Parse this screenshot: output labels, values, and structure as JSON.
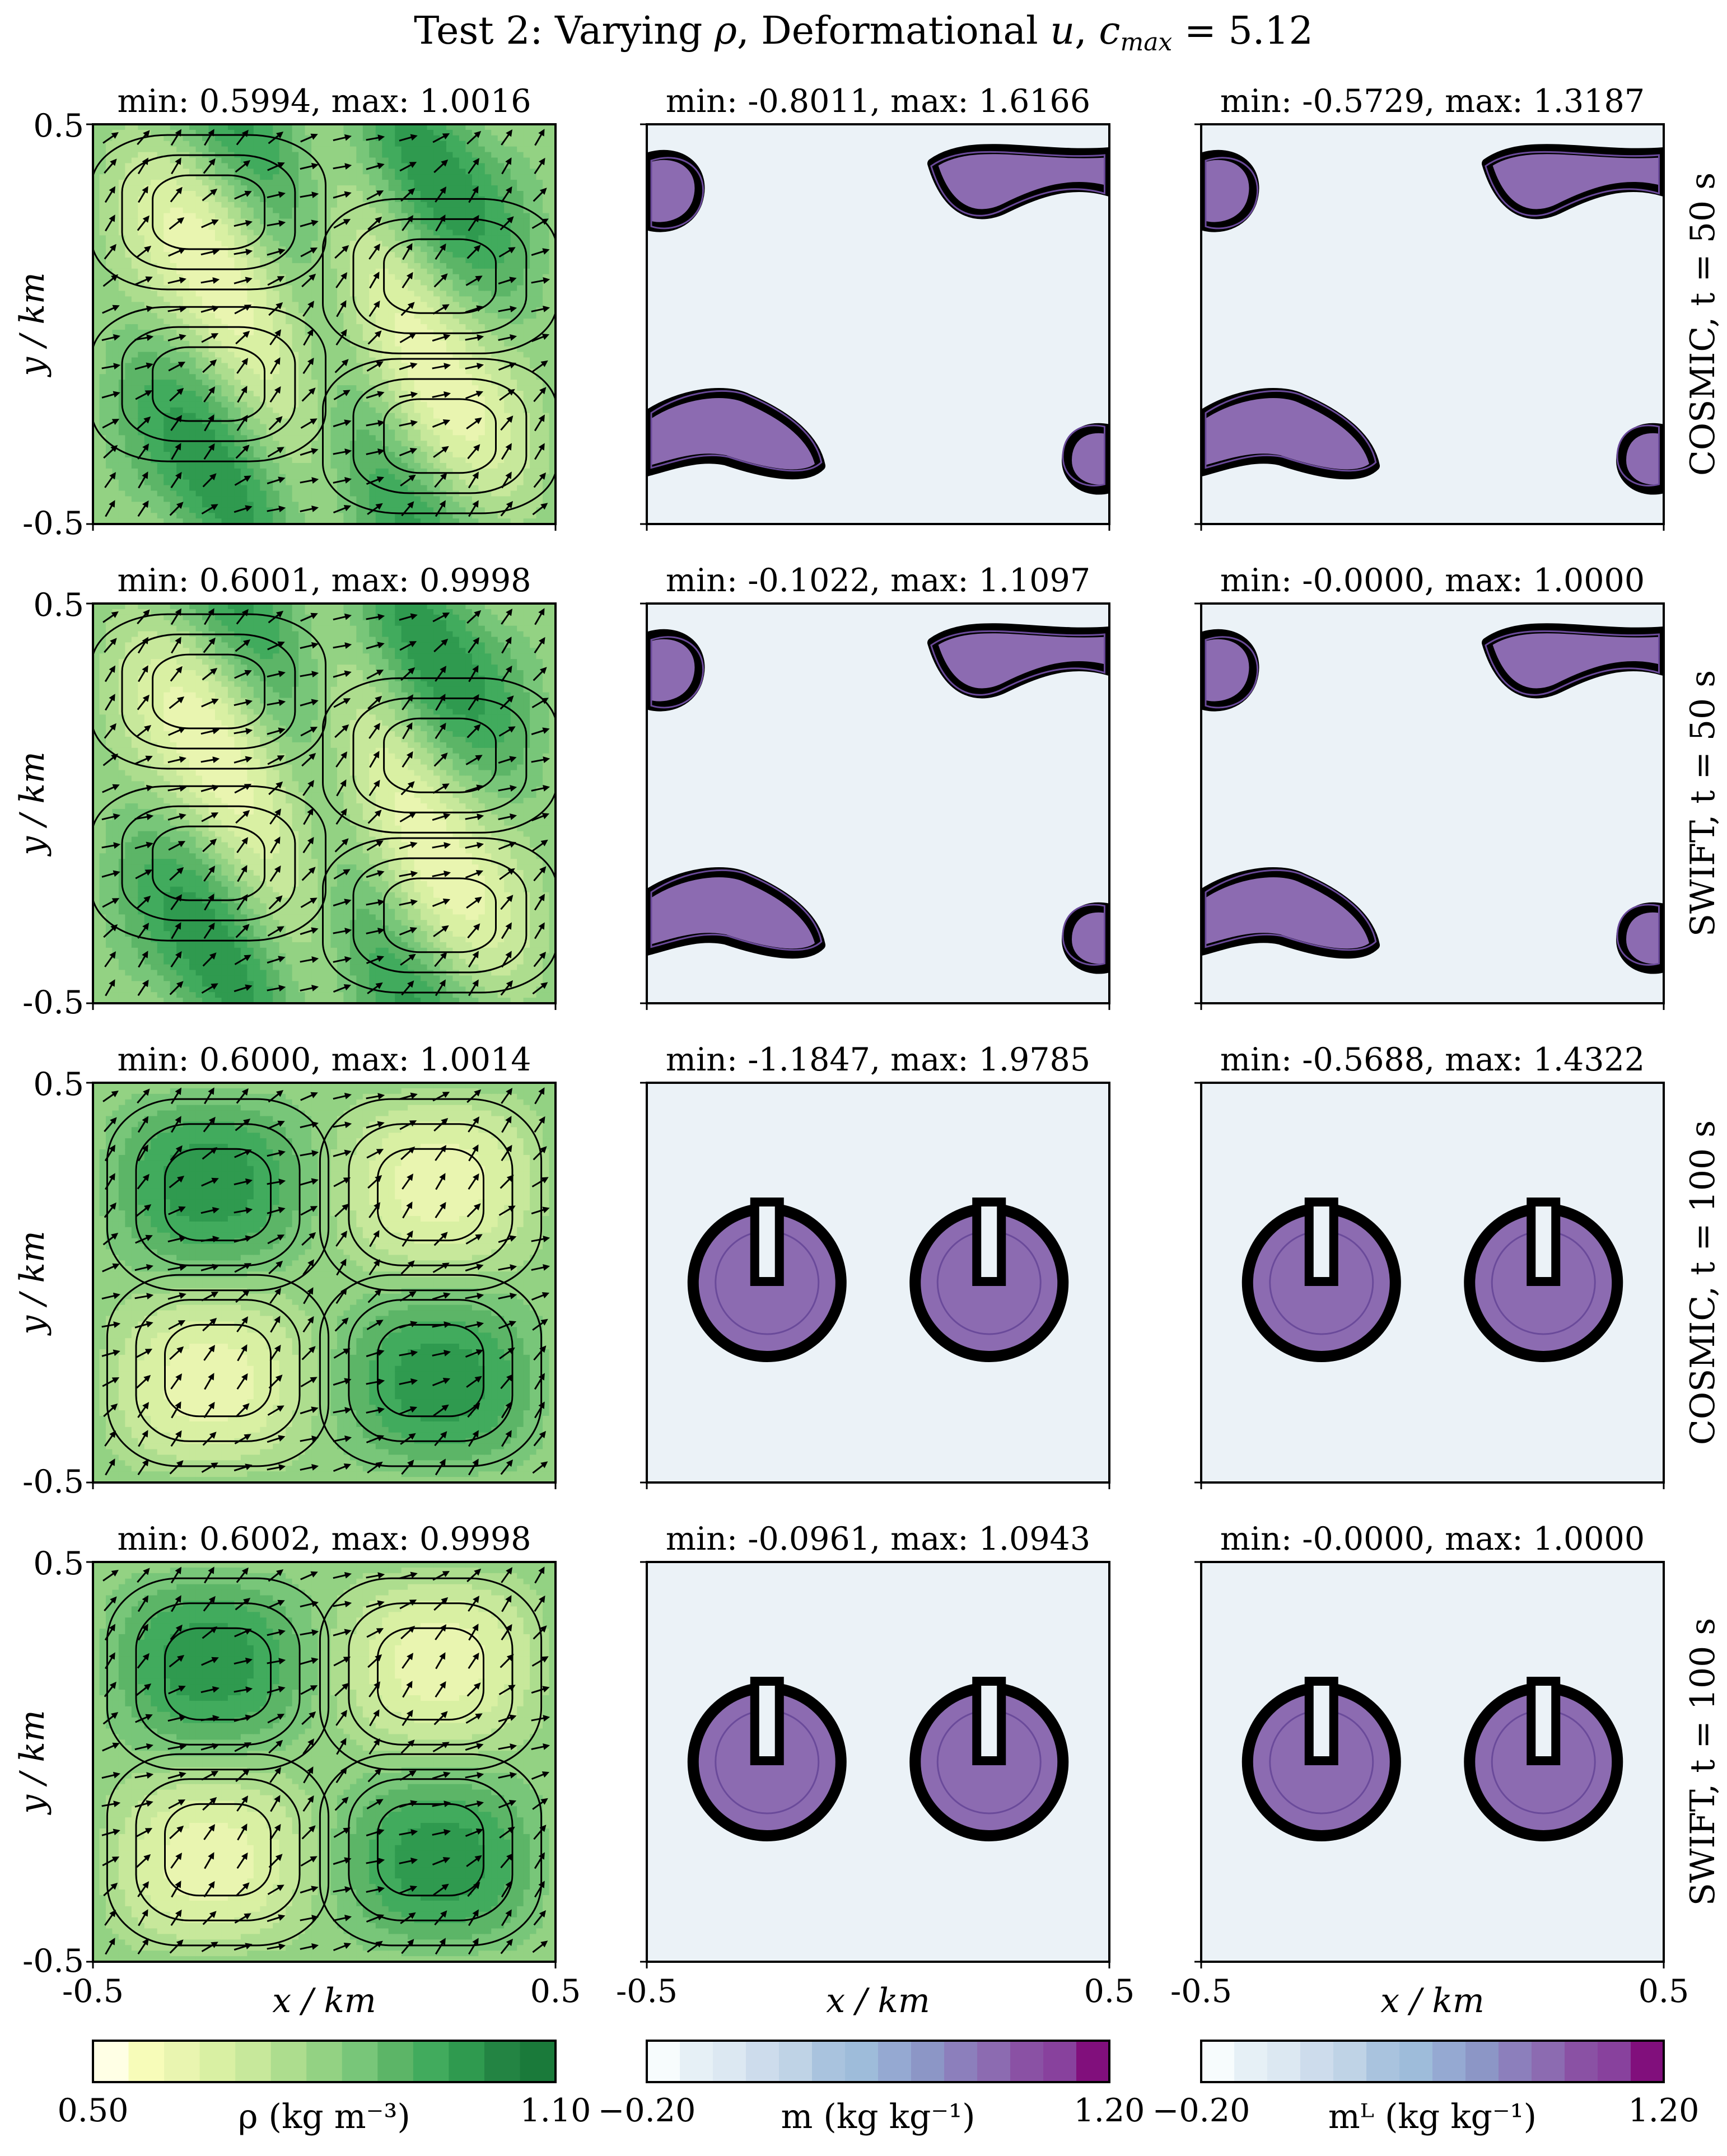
{
  "figure": {
    "title": "Test 2: Varying ρ, Deformational u, c_max = 5.12"
  },
  "chart_data": {
    "type": "heatmap",
    "title": "Test 2: Varying ρ, Deformational u, c_max = 5.12",
    "xlabel": "x / km",
    "ylabel": "y / km",
    "xlim": [
      -0.5,
      0.5
    ],
    "ylim": [
      -0.5,
      0.5
    ],
    "x_ticks": [
      "-0.5",
      "0.5"
    ],
    "y_ticks": [
      "0.5",
      "-0.5"
    ],
    "row_labels": [
      "COSMIC, t = 50 s",
      "SWIFT, t = 50 s",
      "COSMIC, t = 100 s",
      "SWIFT, t = 100 s"
    ],
    "panels": [
      [
        {
          "variable": "rho",
          "scheme": "COSMIC",
          "t": 50,
          "min": "0.5994",
          "max": "1.0016",
          "title": "min: 0.5994, max: 1.0016"
        },
        {
          "variable": "m",
          "scheme": "COSMIC",
          "t": 50,
          "min": "-0.8011",
          "max": "1.6166",
          "title": "min: -0.8011, max: 1.6166"
        },
        {
          "variable": "mL",
          "scheme": "COSMIC",
          "t": 50,
          "min": "-0.5729",
          "max": "1.3187",
          "title": "min: -0.5729, max: 1.3187"
        }
      ],
      [
        {
          "variable": "rho",
          "scheme": "SWIFT",
          "t": 50,
          "min": "0.6001",
          "max": "0.9998",
          "title": "min: 0.6001, max: 0.9998"
        },
        {
          "variable": "m",
          "scheme": "SWIFT",
          "t": 50,
          "min": "-0.1022",
          "max": "1.1097",
          "title": "min: -0.1022, max: 1.1097"
        },
        {
          "variable": "mL",
          "scheme": "SWIFT",
          "t": 50,
          "min": "-0.0000",
          "max": "1.0000",
          "title": "min: -0.0000, max: 1.0000"
        }
      ],
      [
        {
          "variable": "rho",
          "scheme": "COSMIC",
          "t": 100,
          "min": "0.6000",
          "max": "1.0014",
          "title": "min: 0.6000, max: 1.0014"
        },
        {
          "variable": "m",
          "scheme": "COSMIC",
          "t": 100,
          "min": "-1.1847",
          "max": "1.9785",
          "title": "min: -1.1847, max: 1.9785"
        },
        {
          "variable": "mL",
          "scheme": "COSMIC",
          "t": 100,
          "min": "-0.5688",
          "max": "1.4322",
          "title": "min: -0.5688, max: 1.4322"
        }
      ],
      [
        {
          "variable": "rho",
          "scheme": "SWIFT",
          "t": 100,
          "min": "0.6002",
          "max": "0.9998",
          "title": "min: 0.6002, max: 0.9998"
        },
        {
          "variable": "m",
          "scheme": "SWIFT",
          "t": 100,
          "min": "-0.0961",
          "max": "1.0943",
          "title": "min: -0.0961, max: 1.0943"
        },
        {
          "variable": "mL",
          "scheme": "SWIFT",
          "t": 100,
          "min": "-0.0000",
          "max": "1.0000",
          "title": "min: -0.0000, max: 1.0000"
        }
      ]
    ],
    "colorbars": [
      {
        "label": "ρ (kg m⁻³)",
        "min": "0.50",
        "max": "1.10",
        "vmin": 0.5,
        "vmax": 1.1,
        "colors": [
          "#ffffe5",
          "#f7fcb9",
          "#e9f5b0",
          "#d9f0a3",
          "#c7e89b",
          "#addd8e",
          "#93d283",
          "#78c679",
          "#5cb567",
          "#41ab5d",
          "#2f9a4f",
          "#238443",
          "#1a7a3a"
        ]
      },
      {
        "label": "m (kg kg⁻¹)",
        "min": "−0.20",
        "max": "1.20",
        "vmin": -0.2,
        "vmax": 1.2,
        "colors": [
          "#f7fcfd",
          "#e6f0f6",
          "#dce8f2",
          "#cddcec",
          "#bfd3e6",
          "#a9c3de",
          "#9ebcda",
          "#95a9d2",
          "#8c96c6",
          "#8c7fbc",
          "#8c6bb1",
          "#8a51a4",
          "#88419d",
          "#810f7c"
        ]
      },
      {
        "label": "mᴸ (kg kg⁻¹)",
        "min": "−0.20",
        "max": "1.20",
        "vmin": -0.2,
        "vmax": 1.2,
        "colors": [
          "#f7fcfd",
          "#e6f0f6",
          "#dce8f2",
          "#cddcec",
          "#bfd3e6",
          "#a9c3de",
          "#9ebcda",
          "#95a9d2",
          "#8c96c6",
          "#8c7fbc",
          "#8c6bb1",
          "#8a51a4",
          "#88419d",
          "#810f7c"
        ]
      }
    ],
    "grid": false
  }
}
